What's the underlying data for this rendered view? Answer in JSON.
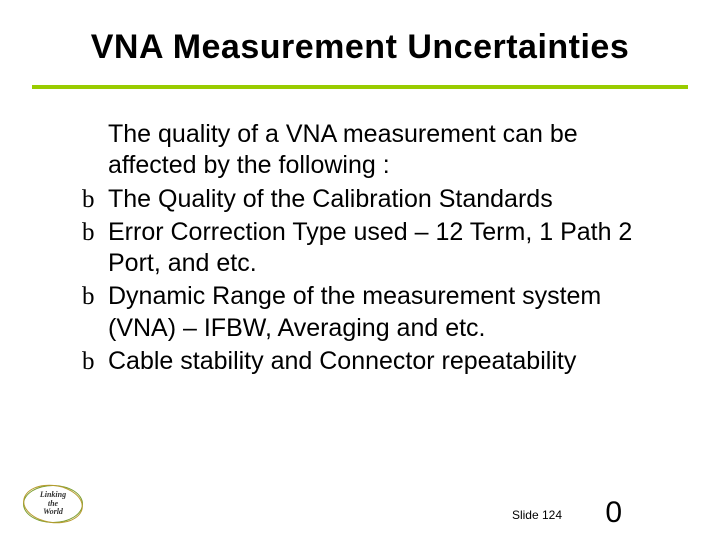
{
  "title": "VNA Measurement Uncertainties",
  "divider_color": "#99cc00",
  "intro": "The quality of a VNA measurement can be affected by the following :",
  "bullet_glyph": "b",
  "bullets": [
    "The Quality of the Calibration Standards",
    "Error Correction Type used – 12 Term, 1 Path 2 Port, and etc.",
    "Dynamic Range of the measurement system (VNA) – IFBW, Averaging and etc.",
    "Cable stability and Connector repeatability"
  ],
  "logo": {
    "line1": "Linking",
    "line2": "the",
    "line3": "World"
  },
  "slide_label": "Slide 124",
  "page_number": "0",
  "text_color": "#000000",
  "background_color": "#ffffff",
  "title_fontsize": 34,
  "body_fontsize": 25
}
